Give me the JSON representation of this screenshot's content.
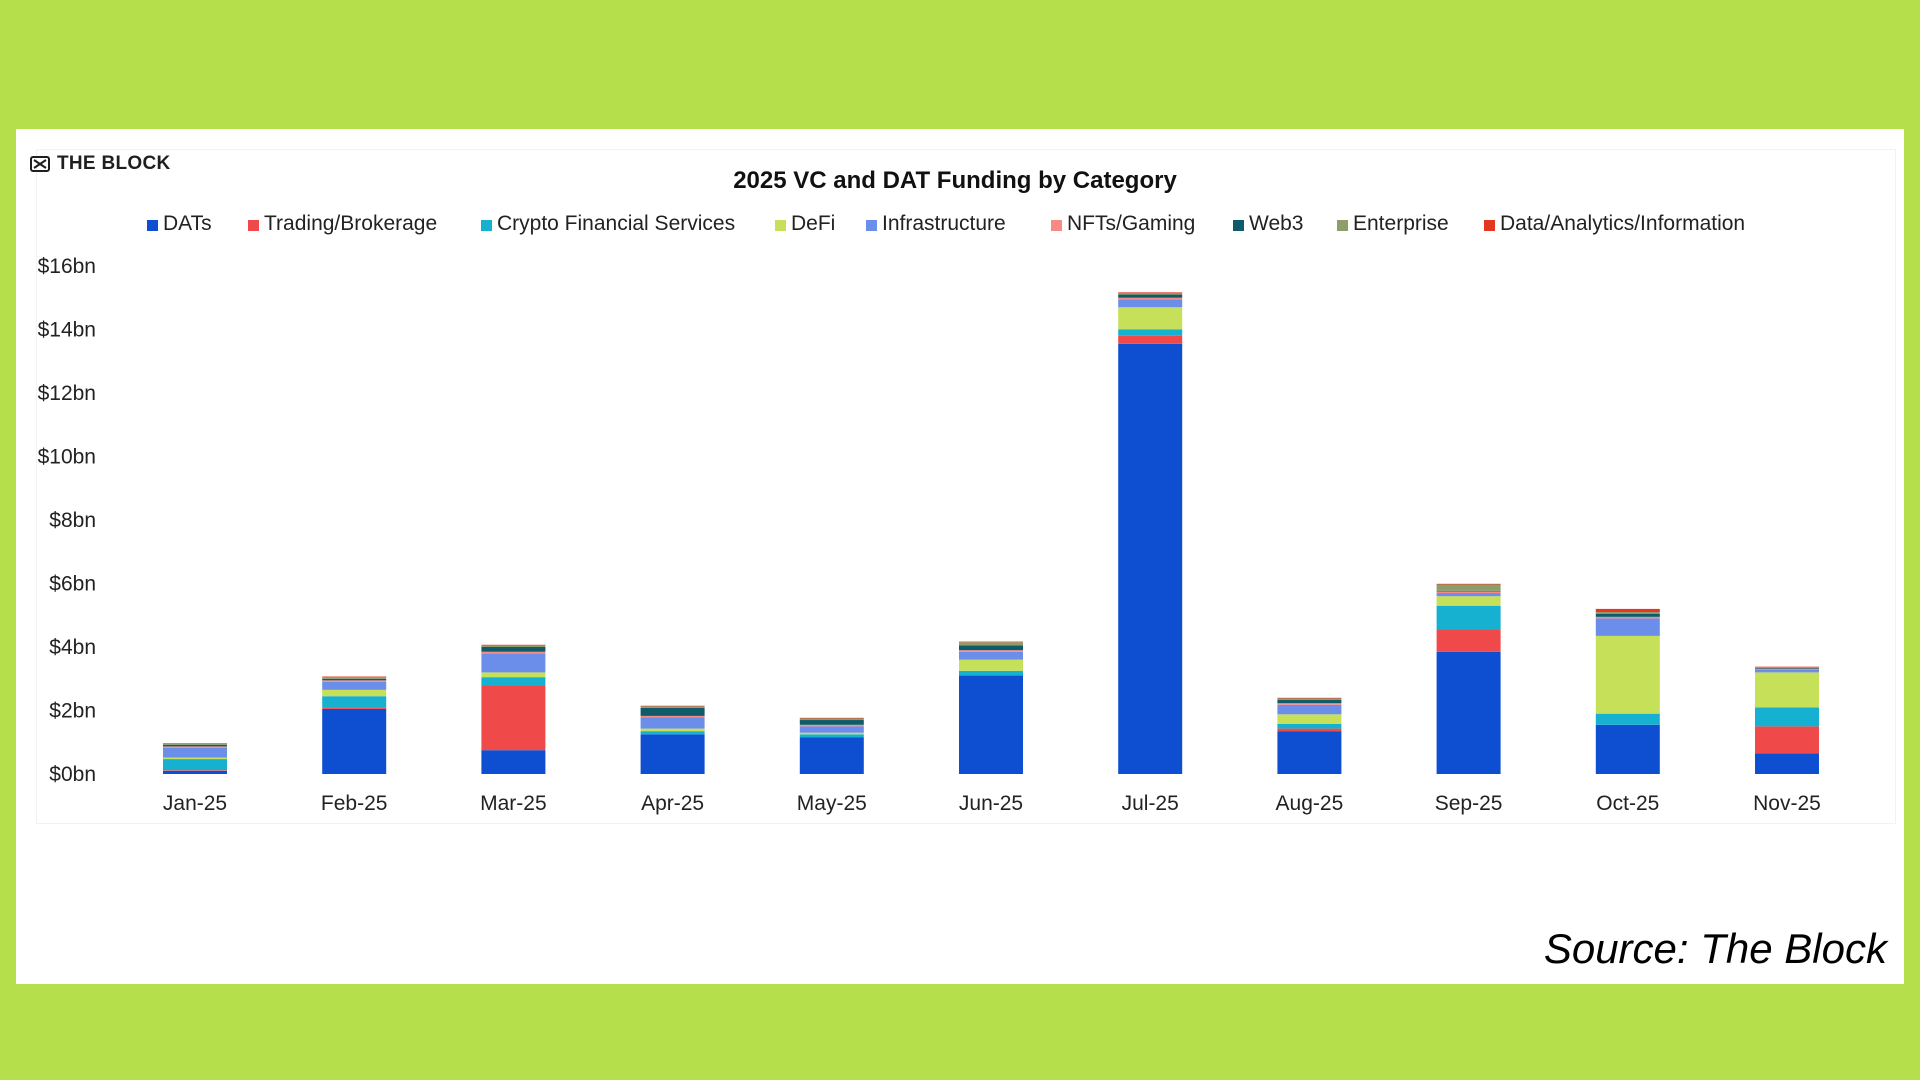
{
  "logo": {
    "text": "THE BLOCK"
  },
  "source": "Source: The Block",
  "chart_data": {
    "type": "bar",
    "stacked": true,
    "title": "2025 VC and DAT Funding by Category",
    "xlabel": "",
    "ylabel": "",
    "ylim": [
      0,
      16
    ],
    "yticks": [
      0,
      2,
      4,
      6,
      8,
      10,
      12,
      14,
      16
    ],
    "ytick_labels": [
      "$0bn",
      "$2bn",
      "$4bn",
      "$6bn",
      "$8bn",
      "$10bn",
      "$12bn",
      "$14bn",
      "$16bn"
    ],
    "categories": [
      "Jan-25",
      "Feb-25",
      "Mar-25",
      "Apr-25",
      "May-25",
      "Jun-25",
      "Jul-25",
      "Aug-25",
      "Sep-25",
      "Oct-25",
      "Nov-25"
    ],
    "legend_position": "top",
    "series": [
      {
        "name": "DATs",
        "color": "#0d4fd0",
        "values": [
          0.1,
          2.05,
          0.75,
          1.25,
          1.15,
          3.1,
          13.55,
          1.35,
          3.85,
          1.55,
          0.65
        ]
      },
      {
        "name": "Trading/Brokerage",
        "color": "#f0494a",
        "values": [
          0.02,
          0.05,
          2.05,
          0.0,
          0.0,
          0.0,
          0.25,
          0.08,
          0.7,
          0.0,
          0.85
        ]
      },
      {
        "name": "Crypto Financial Services",
        "color": "#16b1d1",
        "values": [
          0.35,
          0.35,
          0.25,
          0.1,
          0.1,
          0.15,
          0.2,
          0.15,
          0.75,
          0.35,
          0.6
        ]
      },
      {
        "name": "DeFi",
        "color": "#c6e05a",
        "values": [
          0.05,
          0.2,
          0.15,
          0.08,
          0.05,
          0.35,
          0.7,
          0.3,
          0.3,
          2.45,
          1.1
        ]
      },
      {
        "name": "Infrastructure",
        "color": "#6b8eeb",
        "values": [
          0.3,
          0.25,
          0.6,
          0.35,
          0.2,
          0.25,
          0.25,
          0.3,
          0.1,
          0.55,
          0.1
        ]
      },
      {
        "name": "NFTs/Gaming",
        "color": "#f88a86",
        "values": [
          0.05,
          0.05,
          0.05,
          0.05,
          0.05,
          0.05,
          0.05,
          0.05,
          0.05,
          0.05,
          0.02
        ]
      },
      {
        "name": "Web3",
        "color": "#0f5b6a",
        "values": [
          0.05,
          0.05,
          0.15,
          0.25,
          0.15,
          0.15,
          0.1,
          0.1,
          0.02,
          0.1,
          0.02
        ]
      },
      {
        "name": "Enterprise",
        "color": "#8e9e6b",
        "values": [
          0.03,
          0.05,
          0.05,
          0.05,
          0.05,
          0.1,
          0.05,
          0.05,
          0.2,
          0.05,
          0.02
        ]
      },
      {
        "name": "Data/Analytics/Information",
        "color": "#e5361f",
        "values": [
          0.02,
          0.02,
          0.02,
          0.02,
          0.02,
          0.02,
          0.02,
          0.02,
          0.02,
          0.1,
          0.02
        ]
      }
    ]
  }
}
